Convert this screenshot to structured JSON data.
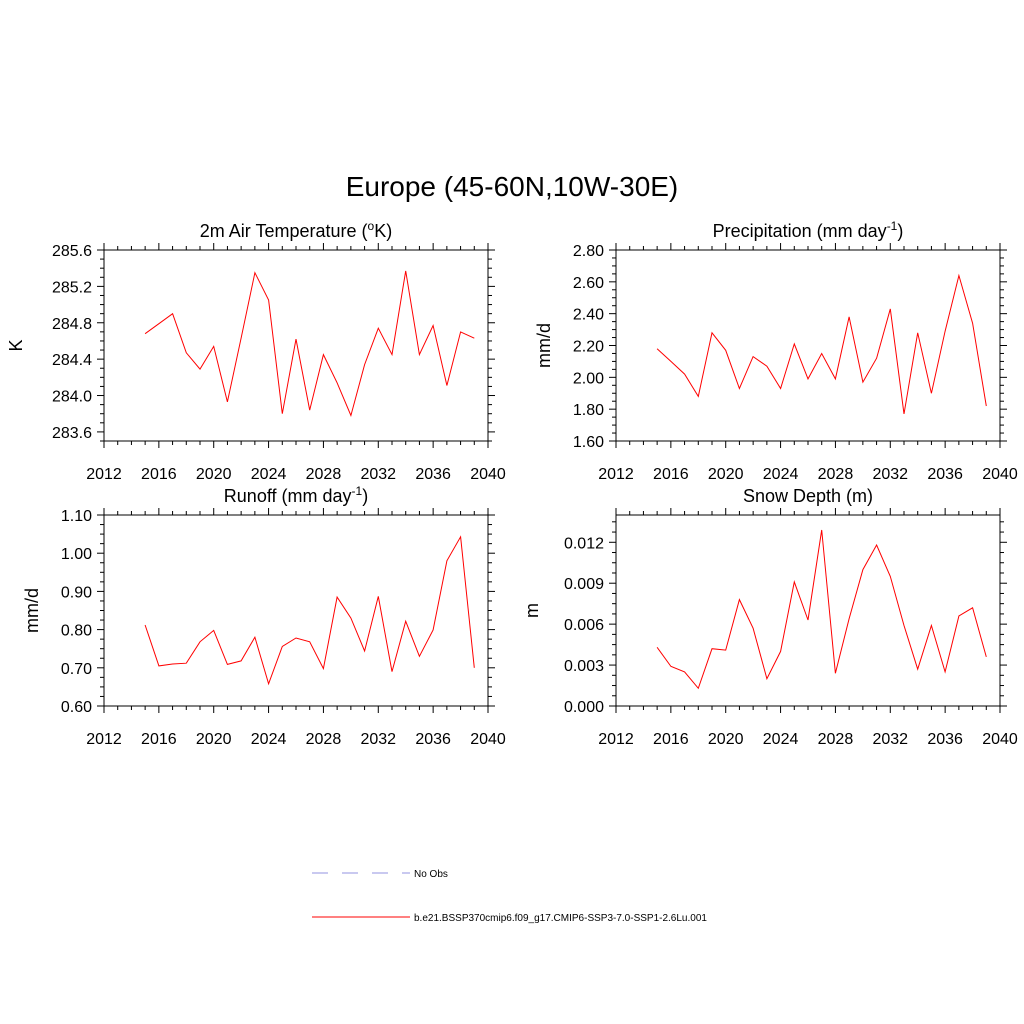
{
  "figure": {
    "title": "Europe (45-60N,10W-30E)",
    "legend": [
      {
        "label": "No Obs",
        "color": "#a9a9e8",
        "dash": true
      },
      {
        "label": "b.e21.BSSP370cmip6.f09_g17.CMIP6-SSP3-7.0-SSP1-2.6Lu.001",
        "color": "#ff0000",
        "dash": false
      }
    ]
  },
  "chart_data": [
    {
      "type": "line",
      "title_main": "2m Air Temperature (",
      "title_sup": "o",
      "title_end": "K)",
      "ylabel": "K",
      "xlim": [
        2012,
        2040
      ],
      "xticks": [
        "2012",
        "2016",
        "2020",
        "2024",
        "2028",
        "2032",
        "2036",
        "2040"
      ],
      "ylim": [
        283.5,
        285.6
      ],
      "yticks": [
        "283.6",
        "284.0",
        "284.4",
        "284.8",
        "285.2",
        "285.6"
      ],
      "x": [
        2015,
        2016,
        2017,
        2018,
        2019,
        2020,
        2021,
        2022,
        2023,
        2024,
        2025,
        2026,
        2027,
        2028,
        2029,
        2030,
        2031,
        2032,
        2033,
        2034,
        2035,
        2036,
        2037,
        2038,
        2039
      ],
      "series": [
        {
          "color": "#ff0000",
          "values": [
            284.68,
            284.79,
            284.9,
            284.47,
            284.29,
            284.54,
            283.93,
            284.63,
            285.35,
            285.05,
            283.8,
            284.62,
            283.84,
            284.45,
            284.14,
            283.78,
            284.34,
            284.74,
            284.45,
            285.37,
            284.45,
            284.77,
            284.11,
            284.7,
            284.63
          ]
        }
      ]
    },
    {
      "type": "line",
      "title_main": "Precipitation (mm day",
      "title_sup": "-1",
      "title_end": ")",
      "ylabel": "mm/d",
      "xlim": [
        2012,
        2040
      ],
      "xticks": [
        "2012",
        "2016",
        "2020",
        "2024",
        "2028",
        "2032",
        "2036",
        "2040"
      ],
      "ylim": [
        1.6,
        2.8
      ],
      "yticks": [
        "1.60",
        "1.80",
        "2.00",
        "2.20",
        "2.40",
        "2.60",
        "2.80"
      ],
      "x": [
        2015,
        2016,
        2017,
        2018,
        2019,
        2020,
        2021,
        2022,
        2023,
        2024,
        2025,
        2026,
        2027,
        2028,
        2029,
        2030,
        2031,
        2032,
        2033,
        2034,
        2035,
        2036,
        2037,
        2038,
        2039
      ],
      "series": [
        {
          "color": "#ff0000",
          "values": [
            2.18,
            2.1,
            2.02,
            1.88,
            2.28,
            2.17,
            1.93,
            2.13,
            2.07,
            1.93,
            2.21,
            1.99,
            2.15,
            1.99,
            2.38,
            1.97,
            2.12,
            2.43,
            1.77,
            2.28,
            1.9,
            2.29,
            2.64,
            2.34,
            1.82
          ]
        }
      ]
    },
    {
      "type": "line",
      "title_main": "Runoff (mm day",
      "title_sup": "-1",
      "title_end": ")",
      "ylabel": "mm/d",
      "xlim": [
        2012,
        2040
      ],
      "xticks": [
        "2012",
        "2016",
        "2020",
        "2024",
        "2028",
        "2032",
        "2036",
        "2040"
      ],
      "ylim": [
        0.6,
        1.1
      ],
      "yticks": [
        "0.60",
        "0.70",
        "0.80",
        "0.90",
        "1.00",
        "1.10"
      ],
      "x": [
        2015,
        2016,
        2017,
        2018,
        2019,
        2020,
        2021,
        2022,
        2023,
        2024,
        2025,
        2026,
        2027,
        2028,
        2029,
        2030,
        2031,
        2032,
        2033,
        2034,
        2035,
        2036,
        2037,
        2038,
        2039
      ],
      "series": [
        {
          "color": "#ff0000",
          "values": [
            0.812,
            0.705,
            0.71,
            0.712,
            0.768,
            0.798,
            0.709,
            0.718,
            0.78,
            0.658,
            0.756,
            0.778,
            0.768,
            0.698,
            0.885,
            0.83,
            0.744,
            0.887,
            0.69,
            0.822,
            0.73,
            0.799,
            0.98,
            1.043,
            0.7
          ]
        }
      ]
    },
    {
      "type": "line",
      "title_main": "Snow Depth (m)",
      "title_sup": "",
      "title_end": "",
      "ylabel": "m",
      "xlim": [
        2012,
        2040
      ],
      "xticks": [
        "2012",
        "2016",
        "2020",
        "2024",
        "2028",
        "2032",
        "2036",
        "2040"
      ],
      "ylim": [
        0.0,
        0.014
      ],
      "yticks": [
        "0.000",
        "0.003",
        "0.006",
        "0.009",
        "0.012"
      ],
      "x": [
        2015,
        2016,
        2017,
        2018,
        2019,
        2020,
        2021,
        2022,
        2023,
        2024,
        2025,
        2026,
        2027,
        2028,
        2029,
        2030,
        2031,
        2032,
        2033,
        2034,
        2035,
        2036,
        2037,
        2038,
        2039
      ],
      "series": [
        {
          "color": "#ff0000",
          "values": [
            0.0043,
            0.0029,
            0.0025,
            0.0013,
            0.0042,
            0.0041,
            0.0078,
            0.0057,
            0.002,
            0.004,
            0.0091,
            0.0063,
            0.0129,
            0.0024,
            0.0064,
            0.01,
            0.0118,
            0.0095,
            0.0059,
            0.0027,
            0.0059,
            0.0025,
            0.0066,
            0.0072,
            0.0036
          ]
        }
      ]
    }
  ]
}
